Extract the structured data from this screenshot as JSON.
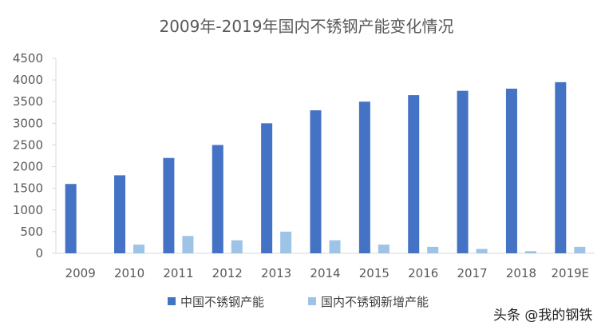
{
  "chart_data": {
    "type": "bar",
    "title": "2009年-2019年国内不锈钢产能变化情况",
    "xlabel": "",
    "ylabel": "",
    "categories": [
      "2009",
      "2010",
      "2011",
      "2012",
      "2013",
      "2014",
      "2015",
      "2016",
      "2017",
      "2018",
      "2019E"
    ],
    "series": [
      {
        "name": "中国不锈钢产能",
        "color": "#4472c4",
        "values": [
          1600,
          1800,
          2200,
          2500,
          3000,
          3300,
          3500,
          3650,
          3750,
          3800,
          3950
        ]
      },
      {
        "name": "国内不锈钢新增产能",
        "color": "#9dc3e6",
        "values": [
          0,
          200,
          400,
          300,
          500,
          300,
          200,
          150,
          100,
          50,
          150
        ]
      }
    ],
    "ylim": [
      0,
      4500
    ],
    "yticks": [
      "0",
      "500",
      "1000",
      "1500",
      "2000",
      "2500",
      "3000",
      "3500",
      "4000",
      "4500"
    ],
    "grid": false,
    "legend_position": "bottom"
  },
  "watermark": {
    "text": "头条 @我的钢铁"
  }
}
